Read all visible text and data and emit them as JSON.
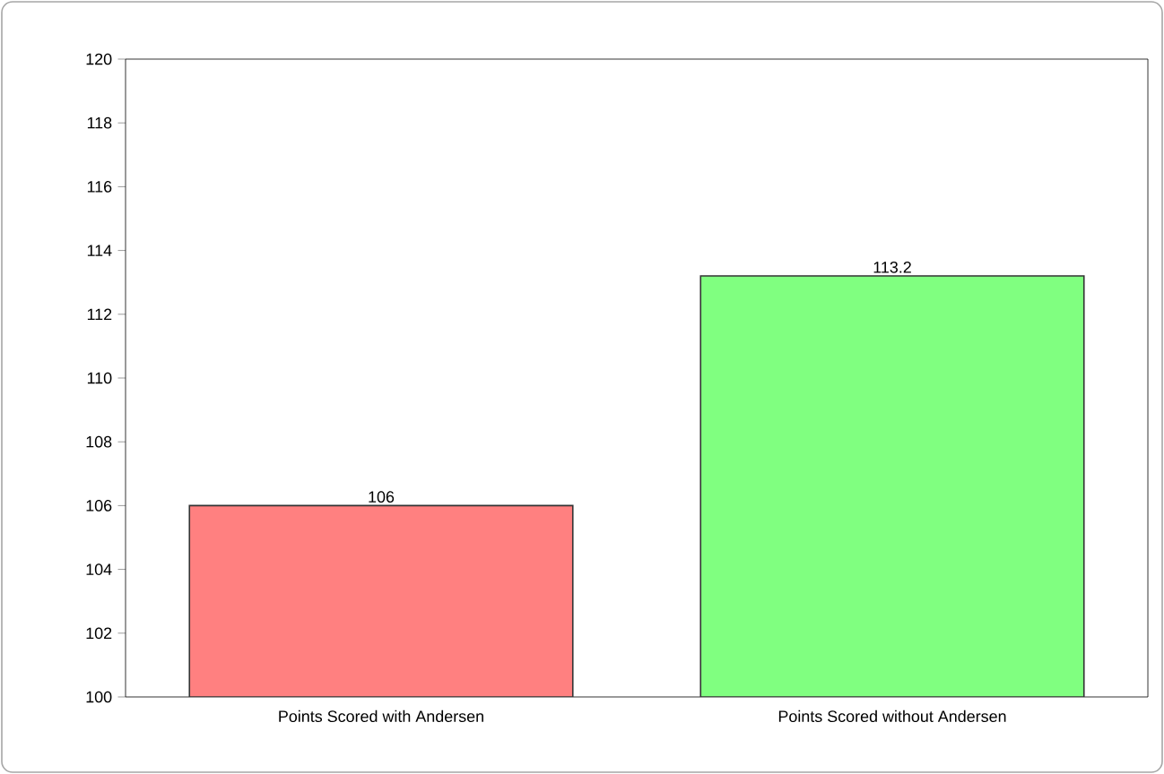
{
  "chart_data": {
    "type": "bar",
    "categories": [
      "Points Scored with Andersen",
      "Points Scored without Andersen"
    ],
    "values": [
      106,
      113.2
    ],
    "colors": [
      "#ff8080",
      "#80ff80"
    ],
    "ylim": [
      100,
      120
    ],
    "yticks": [
      100,
      102,
      104,
      106,
      108,
      110,
      112,
      114,
      116,
      118,
      120
    ],
    "data_labels": true,
    "grid": false
  }
}
